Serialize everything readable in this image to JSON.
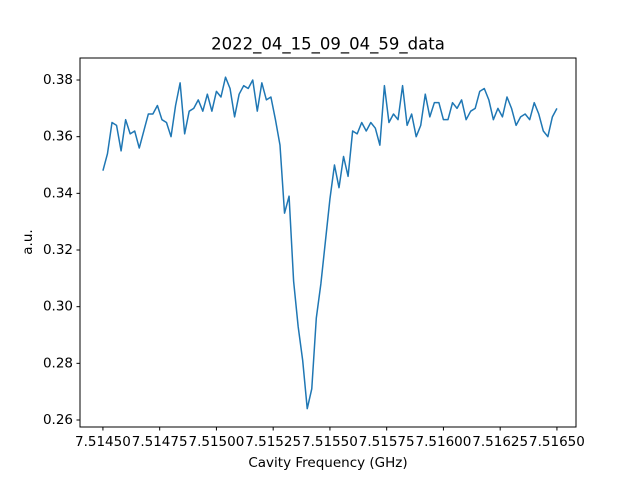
{
  "chart_data": {
    "type": "line",
    "title": "2022_04_15_09_04_59_data",
    "x_label": "Cavity Frequency (GHz)",
    "y_label": "a.u.",
    "color": "#1f77b4",
    "x": [
      7.5145,
      7.51452,
      7.51454,
      7.51456,
      7.51458,
      7.5146,
      7.51462,
      7.51464,
      7.51466,
      7.51468,
      7.5147,
      7.51472,
      7.51474,
      7.51476,
      7.51478,
      7.5148,
      7.51482,
      7.51484,
      7.51486,
      7.51488,
      7.5149,
      7.51492,
      7.51494,
      7.51496,
      7.51498,
      7.515,
      7.51502,
      7.51504,
      7.51506,
      7.51508,
      7.5151,
      7.51512,
      7.51514,
      7.51516,
      7.51518,
      7.5152,
      7.51522,
      7.51524,
      7.51526,
      7.51528,
      7.5153,
      7.51532,
      7.51534,
      7.51536,
      7.51538,
      7.5154,
      7.51542,
      7.51544,
      7.51546,
      7.51548,
      7.5155,
      7.51552,
      7.51554,
      7.51556,
      7.51558,
      7.5156,
      7.51562,
      7.51564,
      7.51566,
      7.51568,
      7.5157,
      7.51572,
      7.51574,
      7.51576,
      7.51578,
      7.5158,
      7.51582,
      7.51584,
      7.51586,
      7.51588,
      7.5159,
      7.51592,
      7.51594,
      7.51596,
      7.51598,
      7.516,
      7.51602,
      7.51604,
      7.51606,
      7.51608,
      7.5161,
      7.51612,
      7.51614,
      7.51616,
      7.51618,
      7.5162,
      7.51622,
      7.51624,
      7.51626,
      7.51628,
      7.5163,
      7.51632,
      7.51634,
      7.51636,
      7.51638,
      7.5164,
      7.51642,
      7.51644,
      7.51646,
      7.51648,
      7.5165
    ],
    "values": [
      0.348,
      0.354,
      0.365,
      0.364,
      0.355,
      0.366,
      0.361,
      0.362,
      0.356,
      0.362,
      0.368,
      0.368,
      0.371,
      0.366,
      0.365,
      0.36,
      0.371,
      0.379,
      0.361,
      0.369,
      0.37,
      0.373,
      0.369,
      0.375,
      0.369,
      0.376,
      0.374,
      0.381,
      0.377,
      0.367,
      0.375,
      0.378,
      0.377,
      0.38,
      0.369,
      0.379,
      0.373,
      0.374,
      0.366,
      0.357,
      0.333,
      0.339,
      0.309,
      0.293,
      0.281,
      0.264,
      0.271,
      0.296,
      0.308,
      0.323,
      0.338,
      0.35,
      0.342,
      0.353,
      0.346,
      0.362,
      0.361,
      0.365,
      0.362,
      0.365,
      0.363,
      0.357,
      0.378,
      0.365,
      0.368,
      0.366,
      0.378,
      0.364,
      0.368,
      0.36,
      0.364,
      0.375,
      0.367,
      0.372,
      0.372,
      0.366,
      0.366,
      0.372,
      0.37,
      0.373,
      0.366,
      0.369,
      0.37,
      0.376,
      0.377,
      0.373,
      0.366,
      0.37,
      0.367,
      0.374,
      0.37,
      0.364,
      0.367,
      0.368,
      0.366,
      0.372,
      0.368,
      0.362,
      0.36,
      0.367,
      0.37
    ],
    "xlim": [
      7.514399,
      7.516584
    ],
    "ylim": [
      0.25753,
      0.38777
    ],
    "xticks": [
      {
        "value": 7.5145,
        "label": "7.51450"
      },
      7.51475,
      {
        "value": 7.515,
        "label": "7.51500"
      },
      7.51525,
      {
        "value": 7.5155,
        "label": "7.51550"
      },
      7.51575,
      {
        "value": 7.516,
        "label": "7.51600"
      },
      7.51625,
      {
        "value": 7.5165,
        "label": "7.51650"
      }
    ],
    "yticks": [
      0.26,
      0.28,
      {
        "value": 0.3,
        "label": "0.30"
      },
      0.32,
      0.34,
      0.36,
      0.38
    ],
    "grid": false
  }
}
